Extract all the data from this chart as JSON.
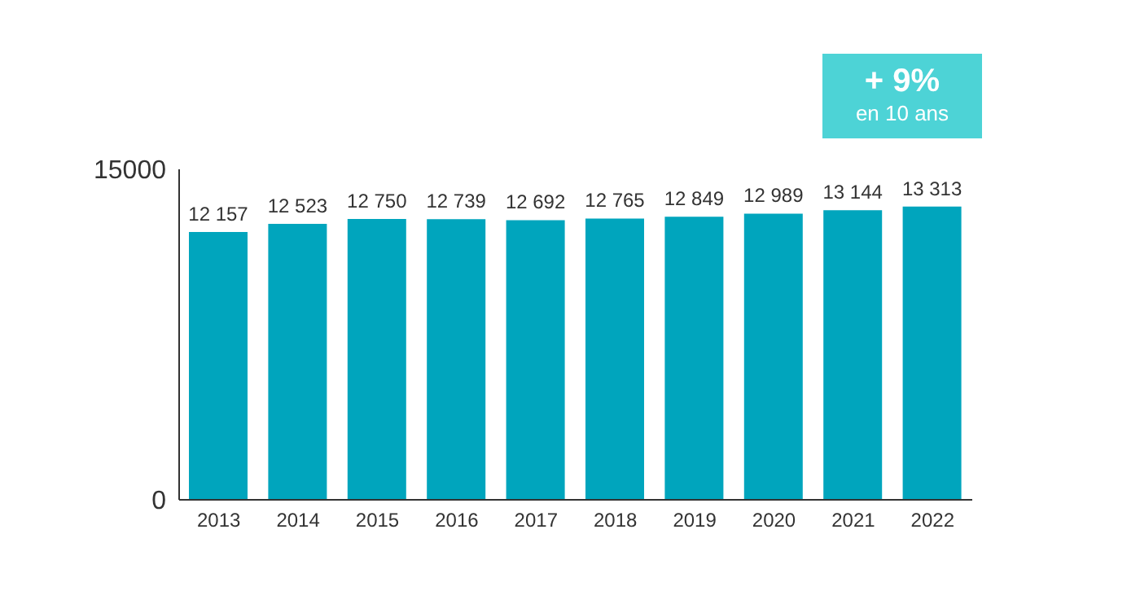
{
  "chart_data": {
    "type": "bar",
    "categories": [
      "2013",
      "2014",
      "2015",
      "2016",
      "2017",
      "2018",
      "2019",
      "2020",
      "2021",
      "2022"
    ],
    "values": [
      12157,
      12523,
      12750,
      12739,
      12692,
      12765,
      12849,
      12989,
      13144,
      13313
    ],
    "value_labels": [
      "12 157",
      "12 523",
      "12 750",
      "12 739",
      "12 692",
      "12 765",
      "12 849",
      "12 989",
      "13 144",
      "13 313"
    ],
    "color": "#00a5bd",
    "ylim": [
      0,
      15000
    ],
    "yticks": [
      0,
      15000
    ],
    "grid": false,
    "annotations": [
      "+ 9%",
      "en 10 ans"
    ]
  }
}
